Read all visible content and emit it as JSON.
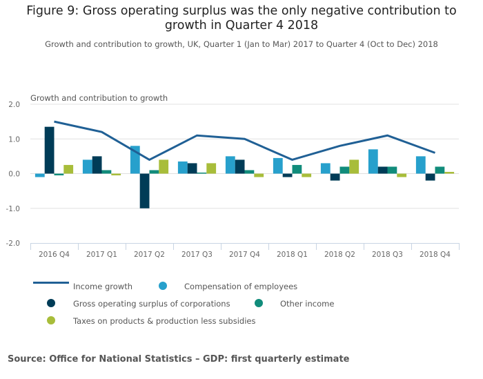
{
  "header": {
    "title_line1": "Figure 9: Gross operating surplus was the only negative contribution to",
    "title_line2": "growth in Quarter 4 2018",
    "subtitle": "Growth and contribution to growth, UK, Quarter 1 (Jan to Mar) 2017 to Quarter 4 (Oct to Dec) 2018"
  },
  "chart_data": {
    "type": "bar",
    "title": "Figure 9: Gross operating surplus was the only negative contribution to growth in Quarter 4 2018",
    "subtitle": "Growth and contribution to growth, UK, Quarter 1 (Jan to Mar) 2017 to Quarter 4 (Oct to Dec) 2018",
    "xlabel": "",
    "ylabel": "Growth and contribution to growth",
    "ylim": [
      -2.0,
      2.0
    ],
    "yticks": [
      2.0,
      1.0,
      0.0,
      -1.0,
      -2.0
    ],
    "ytick_labels": [
      "2.0",
      "1.0",
      "0.0",
      "-1.0",
      "-2.0"
    ],
    "grid": true,
    "legend_position": "bottom",
    "categories": [
      "2016 Q4",
      "2017 Q1",
      "2017 Q2",
      "2017 Q3",
      "2017 Q4",
      "2018 Q1",
      "2018 Q2",
      "2018 Q3",
      "2018 Q4"
    ],
    "series": [
      {
        "name": "Compensation of employees",
        "type": "bar",
        "color": "#27a0cc",
        "values": [
          -0.1,
          0.4,
          0.8,
          0.35,
          0.5,
          0.45,
          0.3,
          0.7,
          0.5
        ]
      },
      {
        "name": "Gross operating surplus of corporations",
        "type": "bar",
        "color": "#003c57",
        "values": [
          1.35,
          0.5,
          -1.0,
          0.3,
          0.4,
          -0.1,
          -0.2,
          0.2,
          -0.2
        ]
      },
      {
        "name": "Other income",
        "type": "bar",
        "color": "#118c7b",
        "values": [
          -0.05,
          0.1,
          0.1,
          0.03,
          0.1,
          0.25,
          0.2,
          0.2,
          0.2
        ]
      },
      {
        "name": "Taxes on products & production less subsidies",
        "type": "bar",
        "color": "#a8bd3a",
        "values": [
          0.25,
          -0.05,
          0.4,
          0.3,
          -0.1,
          -0.1,
          0.4,
          -0.1,
          0.05
        ]
      },
      {
        "name": "Income growth",
        "type": "line",
        "color": "#206095",
        "values": [
          1.5,
          1.2,
          0.4,
          1.1,
          1.0,
          0.4,
          0.8,
          1.1,
          0.6
        ]
      }
    ]
  },
  "legend": {
    "items": [
      {
        "label": "Income growth",
        "symbol": "line",
        "color": "#206095"
      },
      {
        "label": "Compensation of employees",
        "symbol": "dot",
        "color": "#27a0cc"
      },
      {
        "label": "Gross operating surplus of corporations",
        "symbol": "dot",
        "color": "#003c57"
      },
      {
        "label": "Other income",
        "symbol": "dot",
        "color": "#118c7b"
      },
      {
        "label": "Taxes on products & production less subsidies",
        "symbol": "dot",
        "color": "#a8bd3a"
      }
    ]
  },
  "footer": {
    "source": "Source: Office for National Statistics – GDP: first quarterly estimate"
  }
}
